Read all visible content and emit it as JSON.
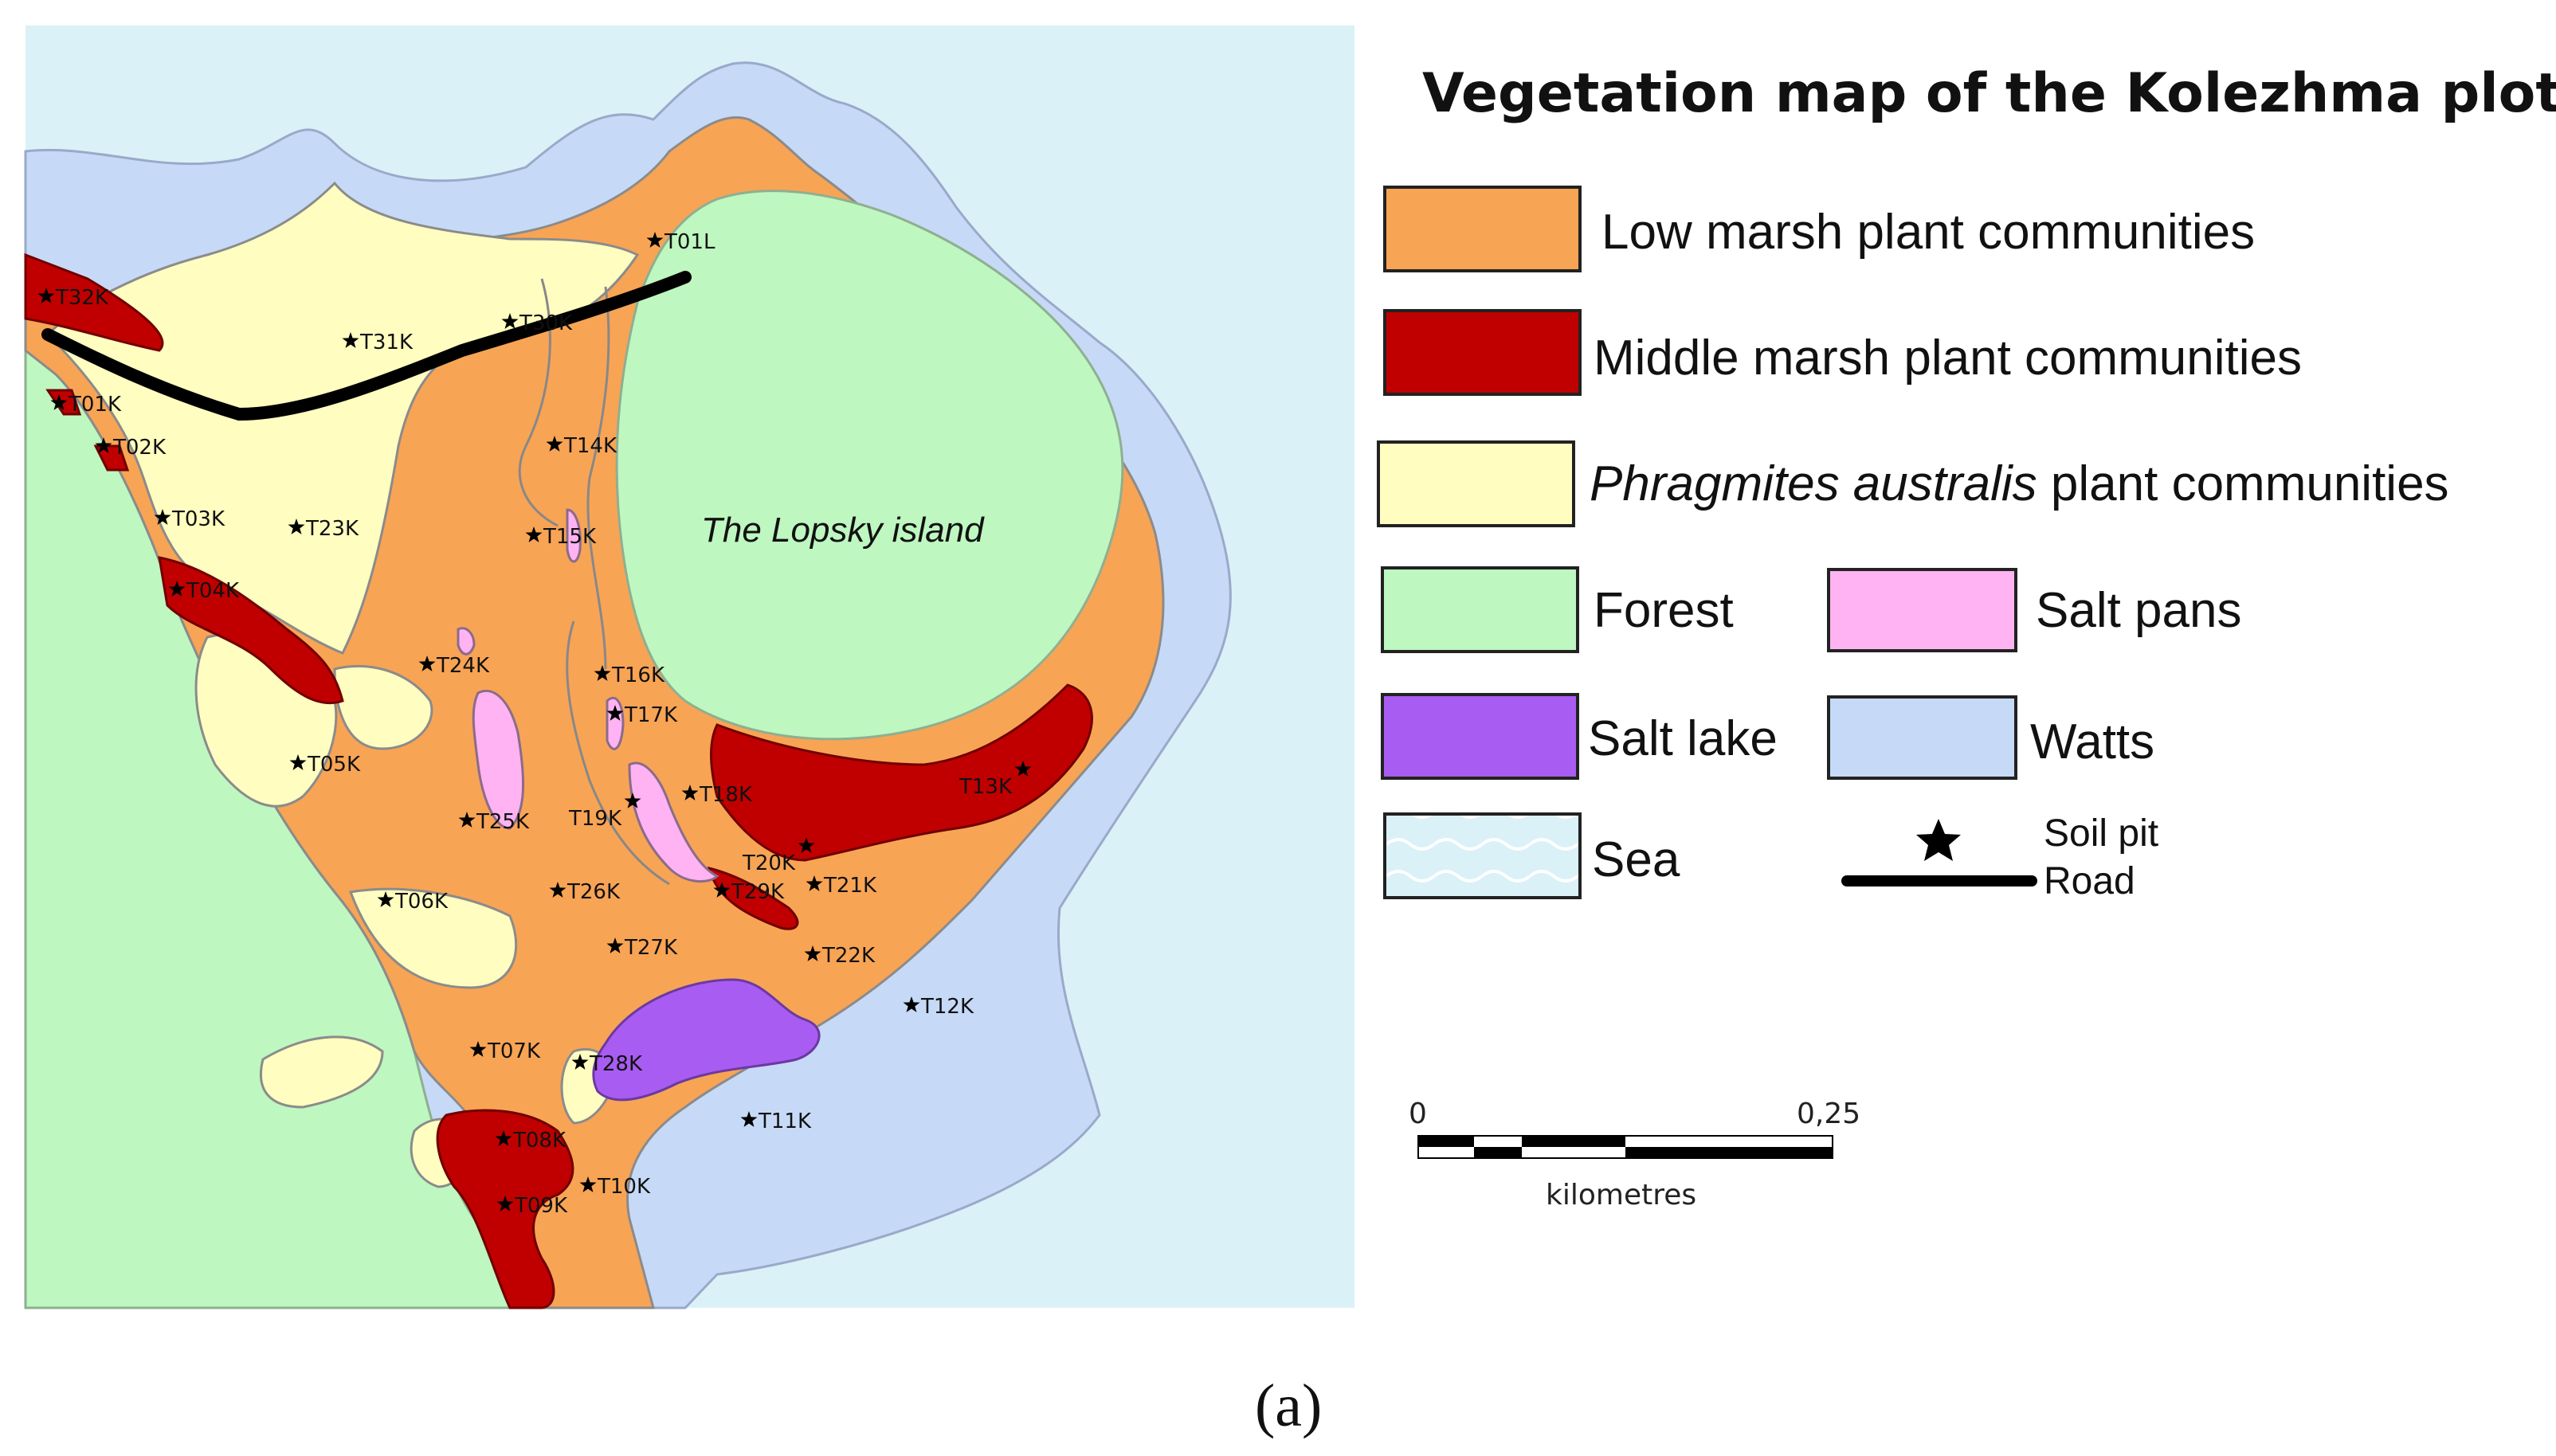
{
  "legend": {
    "title": "Vegetation map of the Kolezhma plot",
    "items": [
      {
        "label": "Low marsh plant communities",
        "color": "#F8A455"
      },
      {
        "label": "Middle marsh plant communities",
        "color": "#C00000"
      },
      {
        "label_italic": "Phragmites australis",
        "label_rest": " plant communities",
        "color": "#FFFDC0"
      },
      {
        "label": "Forest",
        "color": "#BEF7C0"
      },
      {
        "label": "Salt pans",
        "color": "#FFB3F2"
      },
      {
        "label": "Salt lake",
        "color": "#A95CF2"
      },
      {
        "label": "Watts",
        "color": "#C6DAF7"
      },
      {
        "label": "Sea",
        "color": "#DAF1F7"
      },
      {
        "label": "Soil pit",
        "icon": "star-icon"
      },
      {
        "label": "Road",
        "icon": "road-line-icon"
      }
    ]
  },
  "map": {
    "island_label": "The Lopsky island",
    "soil_pits": [
      "T01L",
      "T32K",
      "T31K",
      "T30K",
      "T01K",
      "T02K",
      "T14K",
      "T03K",
      "T23K",
      "T15K",
      "T04K",
      "T24K",
      "T16K",
      "T17K",
      "T05K",
      "T18K",
      "T13K",
      "T25K",
      "T19K",
      "T20K",
      "T29K",
      "T21K",
      "T06K",
      "T26K",
      "T27K",
      "T22K",
      "T12K",
      "T07K",
      "T28K",
      "T11K",
      "T08K",
      "T10K",
      "T09K"
    ]
  },
  "scale_bar": {
    "start": "0",
    "end": "0,25",
    "unit": "kilometres"
  },
  "caption": "(a)"
}
